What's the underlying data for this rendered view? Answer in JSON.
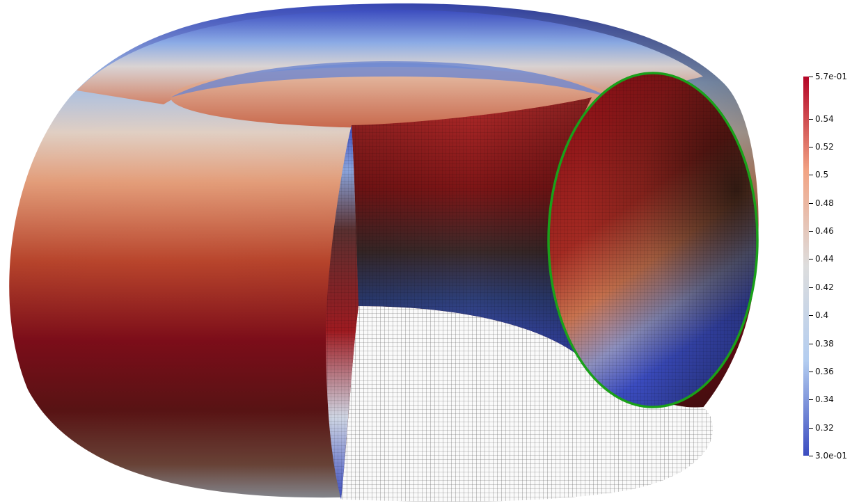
{
  "scene": {
    "object": "torus-with-cutaway",
    "colormap": [
      "#3b4cc0",
      "#b3cdf0",
      "#dddddd",
      "#f2a484",
      "#b40426",
      "#67000d",
      "#2a0a0a"
    ],
    "mesh_color": "#333333",
    "section_outline_color": "#1aa01a"
  },
  "colorbar": {
    "max_label": "5.7e-01",
    "min_label": "3.0e-01",
    "min_value": 0.3,
    "max_value": 0.57,
    "ticks": [
      {
        "value": 0.57,
        "label": "5.7e-01"
      },
      {
        "value": 0.54,
        "label": "0.54"
      },
      {
        "value": 0.52,
        "label": "0.52"
      },
      {
        "value": 0.5,
        "label": "0.5"
      },
      {
        "value": 0.48,
        "label": "0.48"
      },
      {
        "value": 0.46,
        "label": "0.46"
      },
      {
        "value": 0.44,
        "label": "0.44"
      },
      {
        "value": 0.42,
        "label": "0.42"
      },
      {
        "value": 0.4,
        "label": "0.4"
      },
      {
        "value": 0.38,
        "label": "0.38"
      },
      {
        "value": 0.36,
        "label": "0.36"
      },
      {
        "value": 0.34,
        "label": "0.34"
      },
      {
        "value": 0.32,
        "label": "0.32"
      },
      {
        "value": 0.3,
        "label": "3.0e-01"
      }
    ]
  }
}
